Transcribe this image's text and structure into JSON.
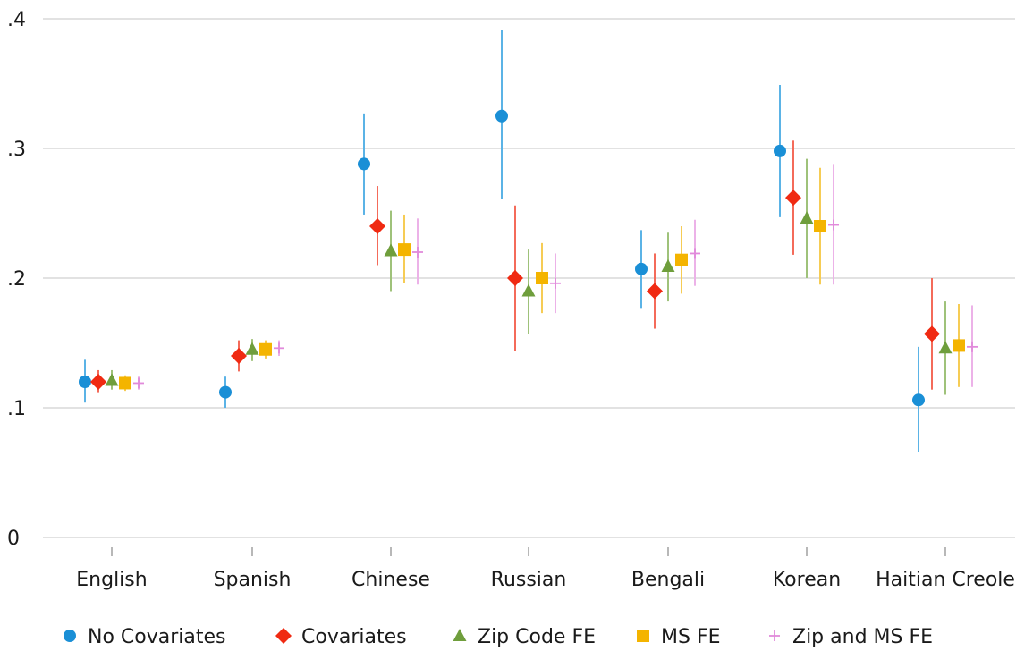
{
  "chart_data": {
    "type": "scatter",
    "subtype": "point estimates with confidence intervals",
    "title": "",
    "xlabel": "",
    "ylabel": "",
    "categories": [
      "English",
      "Spanish",
      "Chinese",
      "Russian",
      "Bengali",
      "Korean",
      "Haitian Creole"
    ],
    "ylim": [
      0,
      0.4
    ],
    "yticks": [
      0,
      0.1,
      0.2,
      0.3,
      0.4
    ],
    "ytick_labels": [
      "0",
      ".1",
      ".2",
      ".3",
      ".4"
    ],
    "grid": "horizontal",
    "legend_position": "bottom",
    "series": [
      {
        "name": "No Covariates",
        "marker": "circle",
        "color": "#1a8fd6",
        "ci_color": "#5bb3e6",
        "values": [
          0.12,
          0.112,
          0.288,
          0.325,
          0.207,
          0.298,
          0.106
        ],
        "lower": [
          0.104,
          0.1,
          0.249,
          0.261,
          0.177,
          0.247,
          0.066
        ],
        "upper": [
          0.137,
          0.124,
          0.327,
          0.391,
          0.237,
          0.349,
          0.147
        ]
      },
      {
        "name": "Covariates",
        "marker": "diamond",
        "color": "#f02a12",
        "ci_color": "#f46b5a",
        "values": [
          0.12,
          0.14,
          0.24,
          0.2,
          0.19,
          0.262,
          0.157
        ],
        "lower": [
          0.112,
          0.128,
          0.21,
          0.144,
          0.161,
          0.218,
          0.114
        ],
        "upper": [
          0.129,
          0.152,
          0.271,
          0.256,
          0.219,
          0.306,
          0.2
        ]
      },
      {
        "name": "Zip Code FE",
        "marker": "triangle",
        "color": "#6f9e3c",
        "ci_color": "#9fc27a",
        "values": [
          0.121,
          0.145,
          0.221,
          0.19,
          0.209,
          0.246,
          0.146
        ],
        "lower": [
          0.114,
          0.136,
          0.19,
          0.157,
          0.182,
          0.2,
          0.11
        ],
        "upper": [
          0.129,
          0.153,
          0.252,
          0.222,
          0.235,
          0.292,
          0.182
        ]
      },
      {
        "name": "MS FE",
        "marker": "square",
        "color": "#f4b400",
        "ci_color": "#f6cc55",
        "values": [
          0.119,
          0.145,
          0.222,
          0.2,
          0.214,
          0.24,
          0.148
        ],
        "lower": [
          0.113,
          0.138,
          0.196,
          0.173,
          0.188,
          0.195,
          0.116
        ],
        "upper": [
          0.125,
          0.152,
          0.249,
          0.227,
          0.24,
          0.285,
          0.18
        ]
      },
      {
        "name": "Zip and MS FE",
        "marker": "plus",
        "color": "#e18adb",
        "ci_color": "#ecb2e8",
        "values": [
          0.119,
          0.146,
          0.22,
          0.196,
          0.219,
          0.241,
          0.147
        ],
        "lower": [
          0.114,
          0.14,
          0.195,
          0.173,
          0.194,
          0.195,
          0.116
        ],
        "upper": [
          0.124,
          0.152,
          0.246,
          0.219,
          0.245,
          0.288,
          0.179
        ]
      }
    ]
  }
}
